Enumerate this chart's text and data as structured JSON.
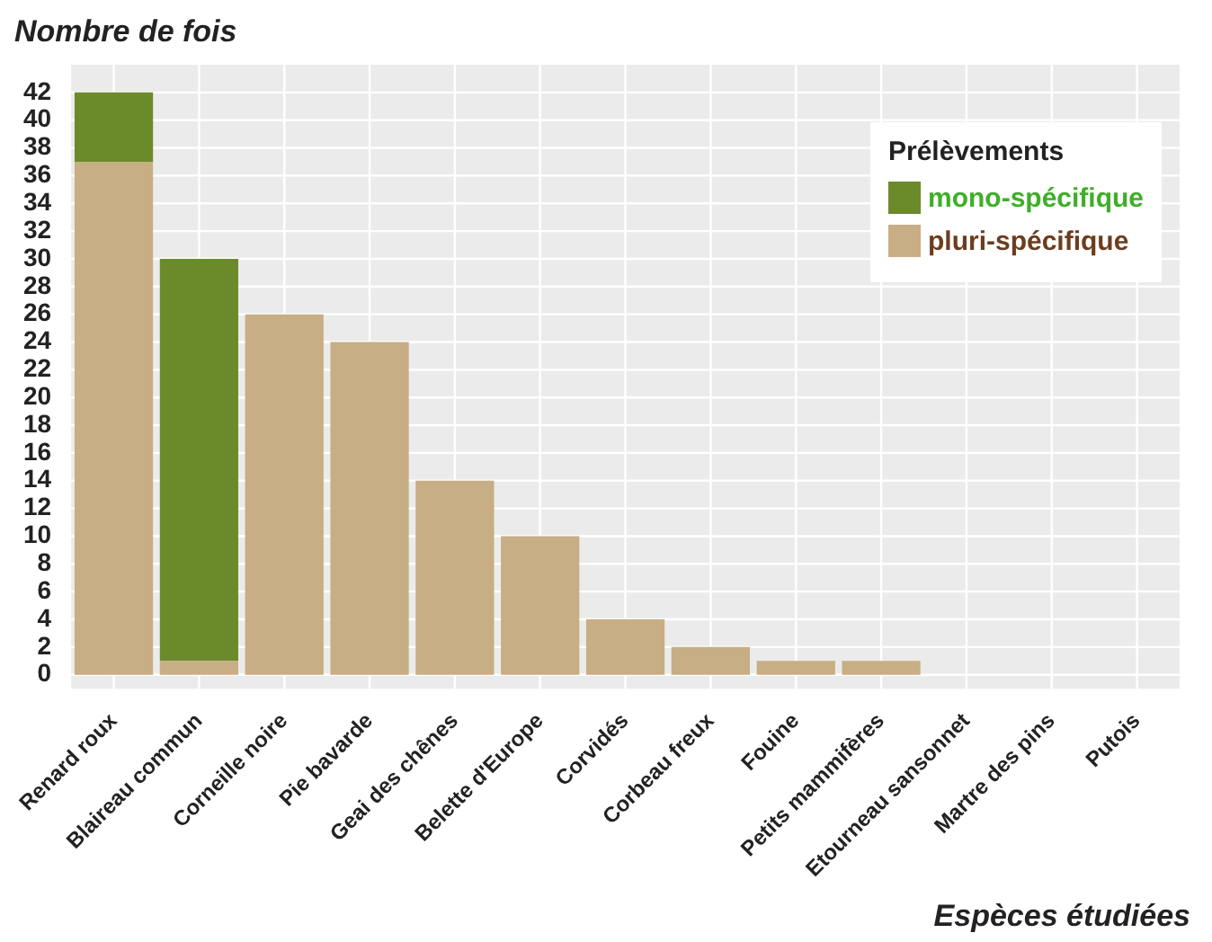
{
  "chart_data": {
    "type": "bar",
    "ylabel": "Nombre de fois",
    "xlabel": "Espèces étudiées",
    "legend_title": "Prélèvements",
    "categories": [
      "Renard roux",
      "Blaireau commun",
      "Corneille noire",
      "Pie bavarde",
      "Geai des chênes",
      "Belette d'Europe",
      "Corvidés",
      "Corbeau freux",
      "Fouine",
      "Petits mammifères",
      "Etourneau sansonnet",
      "Martre des pins",
      "Putois"
    ],
    "series": [
      {
        "name": "pluri-spécifique",
        "color": "#c8ae84",
        "values": [
          37,
          1,
          26,
          24,
          14,
          10,
          4,
          2,
          1,
          1,
          0,
          0,
          0
        ]
      },
      {
        "name": "mono-spécifique",
        "color": "#6b8b2b",
        "values": [
          5,
          29,
          0,
          0,
          0,
          0,
          0,
          0,
          0,
          0,
          0,
          0,
          0
        ]
      }
    ],
    "stacked": true,
    "ylim": [
      -1,
      44
    ],
    "yticks": [
      0,
      2,
      4,
      6,
      8,
      10,
      12,
      14,
      16,
      18,
      20,
      22,
      24,
      26,
      28,
      30,
      32,
      34,
      36,
      38,
      40,
      42
    ],
    "grid": true,
    "legend": "top right"
  }
}
